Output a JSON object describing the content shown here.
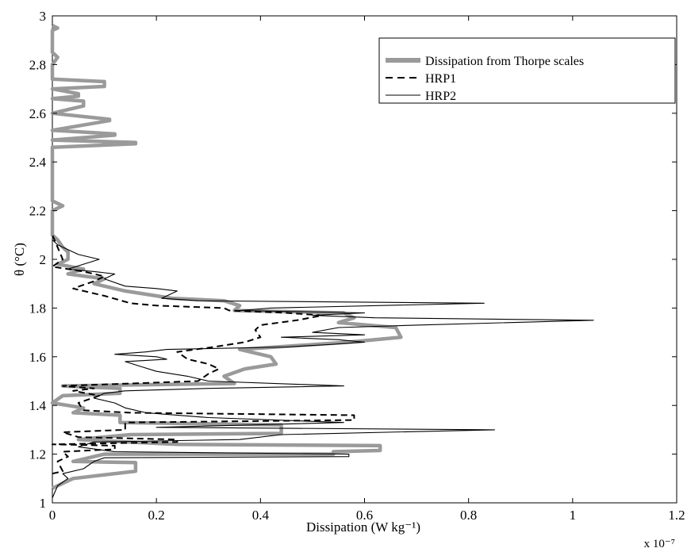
{
  "chart_data": {
    "type": "line",
    "title": "",
    "xlabel": "Dissipation (W kg⁻¹)",
    "ylabel": "θ (°C)",
    "x_exponent_label": "x 10⁻⁷",
    "xlim": [
      0,
      1.2
    ],
    "ylim": [
      1,
      3
    ],
    "xticks": [
      0,
      0.2,
      0.4,
      0.6,
      0.8,
      1,
      1.2
    ],
    "xtick_labels": [
      "0",
      "0.2",
      "0.4",
      "0.6",
      "0.8",
      "1",
      "1.2"
    ],
    "yticks": [
      1,
      1.2,
      1.4,
      1.6,
      1.8,
      2,
      2.2,
      2.4,
      2.6,
      2.8,
      3
    ],
    "ytick_labels": [
      "1",
      "1.2",
      "1.4",
      "1.6",
      "1.8",
      "2",
      "2.2",
      "2.4",
      "2.6",
      "2.8",
      "3"
    ],
    "grid": false,
    "legend_position": "top-right",
    "series": [
      {
        "name": "Dissipation from Thorpe scales",
        "style": "thick-gray",
        "color": "#9a9a9a",
        "points": [
          [
            0,
            1.06
          ],
          [
            0.02,
            1.08
          ],
          [
            0.04,
            1.1
          ],
          [
            0.16,
            1.13
          ],
          [
            0.16,
            1.165
          ],
          [
            0.04,
            1.17
          ],
          [
            0.1,
            1.2
          ],
          [
            0.54,
            1.2
          ],
          [
            0.54,
            1.21
          ],
          [
            0.63,
            1.215
          ],
          [
            0.63,
            1.235
          ],
          [
            0.24,
            1.24
          ],
          [
            0.05,
            1.26
          ],
          [
            0.15,
            1.28
          ],
          [
            0.44,
            1.285
          ],
          [
            0.44,
            1.32
          ],
          [
            0.13,
            1.33
          ],
          [
            0.13,
            1.36
          ],
          [
            0.04,
            1.37
          ],
          [
            0.06,
            1.39
          ],
          [
            0.0,
            1.41
          ],
          [
            0.02,
            1.44
          ],
          [
            0.13,
            1.45
          ],
          [
            0.13,
            1.47
          ],
          [
            0.02,
            1.48
          ],
          [
            0.35,
            1.49
          ],
          [
            0.33,
            1.52
          ],
          [
            0.37,
            1.55
          ],
          [
            0.43,
            1.57
          ],
          [
            0.42,
            1.6
          ],
          [
            0.36,
            1.63
          ],
          [
            0.57,
            1.66
          ],
          [
            0.67,
            1.68
          ],
          [
            0.66,
            1.72
          ],
          [
            0.55,
            1.74
          ],
          [
            0.58,
            1.76
          ],
          [
            0.56,
            1.78
          ],
          [
            0.35,
            1.79
          ],
          [
            0.36,
            1.81
          ],
          [
            0.33,
            1.83
          ],
          [
            0.23,
            1.84
          ],
          [
            0.14,
            1.87
          ],
          [
            0.08,
            1.9
          ],
          [
            0.1,
            1.92
          ],
          [
            0.03,
            1.94
          ],
          [
            0.06,
            1.96
          ],
          [
            0.01,
            1.98
          ],
          [
            0.03,
            2.0
          ],
          [
            0.03,
            2.03
          ],
          [
            0.02,
            2.05
          ],
          [
            0.01,
            2.08
          ],
          [
            0.0,
            2.1
          ],
          [
            0.0,
            2.2
          ],
          [
            0.02,
            2.22
          ],
          [
            0.0,
            2.24
          ],
          [
            0.0,
            2.46
          ],
          [
            0.16,
            2.475
          ],
          [
            0.16,
            2.48
          ],
          [
            0.0,
            2.49
          ],
          [
            0.12,
            2.51
          ],
          [
            0.12,
            2.515
          ],
          [
            0.0,
            2.53
          ],
          [
            0.11,
            2.57
          ],
          [
            0.11,
            2.575
          ],
          [
            0.0,
            2.6
          ],
          [
            0.06,
            2.63
          ],
          [
            0.06,
            2.65
          ],
          [
            0.0,
            2.66
          ],
          [
            0.05,
            2.67
          ],
          [
            0.05,
            2.68
          ],
          [
            0.0,
            2.7
          ],
          [
            0.1,
            2.71
          ],
          [
            0.1,
            2.73
          ],
          [
            0.0,
            2.74
          ],
          [
            0.0,
            2.8
          ],
          [
            0.01,
            2.83
          ],
          [
            0.0,
            2.85
          ],
          [
            0.0,
            2.94
          ],
          [
            0.01,
            2.95
          ],
          [
            0.0,
            2.96
          ]
        ]
      },
      {
        "name": "HRP1",
        "style": "dashed",
        "color": "#000000",
        "points": [
          [
            0.0,
            1.12
          ],
          [
            0.02,
            1.13
          ],
          [
            0.01,
            1.17
          ],
          [
            0.03,
            1.19
          ],
          [
            0.02,
            1.21
          ],
          [
            0.12,
            1.22
          ],
          [
            0.12,
            1.235
          ],
          [
            0.0,
            1.24
          ],
          [
            0.24,
            1.25
          ],
          [
            0.24,
            1.26
          ],
          [
            0.05,
            1.27
          ],
          [
            0.02,
            1.29
          ],
          [
            0.14,
            1.3
          ],
          [
            0.14,
            1.33
          ],
          [
            0.58,
            1.34
          ],
          [
            0.58,
            1.36
          ],
          [
            0.15,
            1.37
          ],
          [
            0.06,
            1.38
          ],
          [
            0.05,
            1.41
          ],
          [
            0.09,
            1.44
          ],
          [
            0.04,
            1.46
          ],
          [
            0.08,
            1.47
          ],
          [
            0.02,
            1.48
          ],
          [
            0.28,
            1.5
          ],
          [
            0.3,
            1.53
          ],
          [
            0.32,
            1.55
          ],
          [
            0.3,
            1.57
          ],
          [
            0.26,
            1.59
          ],
          [
            0.24,
            1.62
          ],
          [
            0.31,
            1.64
          ],
          [
            0.37,
            1.66
          ],
          [
            0.4,
            1.68
          ],
          [
            0.39,
            1.71
          ],
          [
            0.4,
            1.73
          ],
          [
            0.47,
            1.75
          ],
          [
            0.52,
            1.77
          ],
          [
            0.45,
            1.78
          ],
          [
            0.34,
            1.79
          ],
          [
            0.33,
            1.8
          ],
          [
            0.2,
            1.81
          ],
          [
            0.15,
            1.82
          ],
          [
            0.1,
            1.85
          ],
          [
            0.04,
            1.88
          ],
          [
            0.08,
            1.91
          ],
          [
            0.1,
            1.93
          ],
          [
            0.06,
            1.95
          ],
          [
            0.0,
            1.97
          ],
          [
            0.02,
            2.0
          ],
          [
            0.01,
            2.05
          ],
          [
            0.0,
            2.1
          ]
        ]
      },
      {
        "name": "HRP2",
        "style": "solid",
        "color": "#000000",
        "points": [
          [
            0.0,
            1.02
          ],
          [
            0.01,
            1.07
          ],
          [
            0.03,
            1.1
          ],
          [
            0.02,
            1.12
          ],
          [
            0.06,
            1.14
          ],
          [
            0.08,
            1.17
          ],
          [
            0.1,
            1.185
          ],
          [
            0.57,
            1.19
          ],
          [
            0.57,
            1.2
          ],
          [
            0.12,
            1.21
          ],
          [
            0.05,
            1.23
          ],
          [
            0.08,
            1.25
          ],
          [
            0.36,
            1.26
          ],
          [
            0.44,
            1.28
          ],
          [
            0.85,
            1.3
          ],
          [
            0.2,
            1.31
          ],
          [
            0.38,
            1.32
          ],
          [
            0.56,
            1.33
          ],
          [
            0.3,
            1.35
          ],
          [
            0.18,
            1.37
          ],
          [
            0.14,
            1.39
          ],
          [
            0.12,
            1.41
          ],
          [
            0.08,
            1.43
          ],
          [
            0.1,
            1.45
          ],
          [
            0.14,
            1.46
          ],
          [
            0.3,
            1.47
          ],
          [
            0.56,
            1.48
          ],
          [
            0.3,
            1.5
          ],
          [
            0.26,
            1.52
          ],
          [
            0.2,
            1.54
          ],
          [
            0.17,
            1.56
          ],
          [
            0.14,
            1.58
          ],
          [
            0.22,
            1.59
          ],
          [
            0.2,
            1.6
          ],
          [
            0.12,
            1.61
          ],
          [
            0.18,
            1.62
          ],
          [
            0.22,
            1.63
          ],
          [
            0.45,
            1.64
          ],
          [
            0.53,
            1.65
          ],
          [
            0.6,
            1.66
          ],
          [
            0.55,
            1.67
          ],
          [
            0.44,
            1.68
          ],
          [
            0.6,
            1.69
          ],
          [
            0.5,
            1.7
          ],
          [
            0.55,
            1.72
          ],
          [
            0.7,
            1.73
          ],
          [
            1.04,
            1.75
          ],
          [
            0.62,
            1.76
          ],
          [
            0.5,
            1.77
          ],
          [
            0.6,
            1.78
          ],
          [
            0.36,
            1.79
          ],
          [
            0.42,
            1.8
          ],
          [
            0.83,
            1.82
          ],
          [
            0.28,
            1.83
          ],
          [
            0.21,
            1.84
          ],
          [
            0.24,
            1.87
          ],
          [
            0.2,
            1.88
          ],
          [
            0.14,
            1.89
          ],
          [
            0.1,
            1.92
          ],
          [
            0.12,
            1.94
          ],
          [
            0.08,
            1.95
          ],
          [
            0.03,
            1.96
          ],
          [
            0.06,
            1.98
          ],
          [
            0.09,
            2.0
          ],
          [
            0.05,
            2.02
          ],
          [
            0.03,
            2.04
          ],
          [
            0.01,
            2.06
          ],
          [
            0.0,
            2.08
          ]
        ]
      }
    ]
  }
}
